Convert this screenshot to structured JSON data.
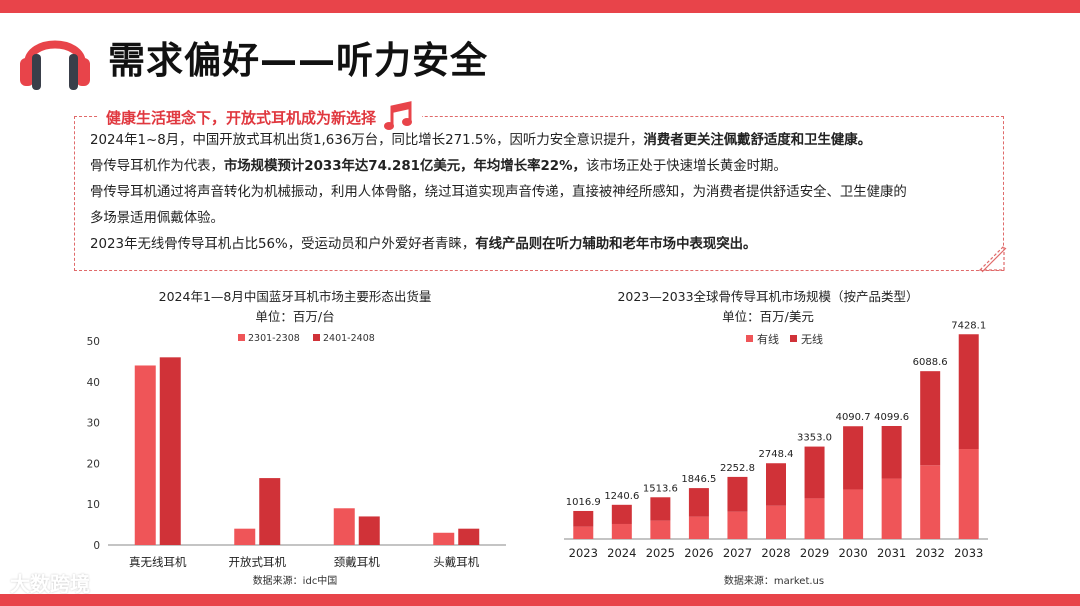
{
  "header": {
    "title": "需求偏好——听力安全"
  },
  "info": {
    "subtitle": "健康生活理念下，开放式耳机成为新选择",
    "p1_a": "2024年1~8月，中国开放式耳机出货1,636万台，同比增长271.5%，因听力安全意识提升，",
    "p1_b": "消费者更关注佩戴舒适度和卫生健康。",
    "p2_a": "骨传导耳机作为代表，",
    "p2_b": "市场规模预计2033年达74.281亿美元，年均增长率22%，",
    "p2_c": "该市场正处于快速增长黄金时期。",
    "p3": "骨传导耳机通过将声音转化为机械振动，利用人体骨骼，绕过耳道实现声音传递，直接被神经所感知，为消费者提供舒适安全、卫生健康的",
    "p4": "多场景适用佩戴体验。",
    "p5_a": "2023年无线骨传导耳机占比56%，受运动员和户外爱好者青睐，",
    "p5_b": "有线产品则在听力辅助和老年市场中表现突出。"
  },
  "watermark": "大数跨境",
  "colors": {
    "accent": "#e8444a",
    "light_red": "#ef5558",
    "dark_red": "#d03238"
  },
  "chart_data": [
    {
      "type": "bar",
      "title": "2024年1—8月中国蓝牙耳机市场主要形态出货量",
      "subtitle": "单位：百万/台",
      "source": "数据来源：idc中国",
      "categories": [
        "真无线耳机",
        "开放式耳机",
        "颈戴耳机",
        "头戴耳机"
      ],
      "series": [
        {
          "name": "2301-2308",
          "values": [
            44,
            4,
            9,
            3
          ]
        },
        {
          "name": "2401-2408",
          "values": [
            46,
            16.4,
            7,
            4
          ]
        }
      ],
      "ylim": [
        0,
        50
      ],
      "yticks": [
        "0",
        "10",
        "20",
        "30",
        "40",
        "50"
      ],
      "legend": "top-center"
    },
    {
      "type": "bar",
      "stacked": true,
      "title": "2023—2033全球骨传导耳机市场规模（按产品类型）",
      "subtitle": "单位：百万/美元",
      "source": "数据来源：market.us",
      "categories": [
        "2023",
        "2024",
        "2025",
        "2026",
        "2027",
        "2028",
        "2029",
        "2030",
        "2031",
        "2032",
        "2033"
      ],
      "series": [
        {
          "name": "有线",
          "values": [
            447,
            545,
            665,
            811,
            990,
            1208,
            1473,
            1797,
            2193,
            2675,
            3264
          ]
        },
        {
          "name": "无线",
          "values": [
            569.9,
            695.6,
            848.6,
            1035.5,
            1262.8,
            1540.4,
            1880,
            2293.7,
            1906.6,
            3413.6,
            4164.1
          ]
        }
      ],
      "totals": [
        "1016.9",
        "1240.6",
        "1513.6",
        "1846.5",
        "2252.8",
        "2748.4",
        "3353.0",
        "4090.7",
        "4099.6",
        "6088.6",
        "7428.1"
      ],
      "ylim": [
        0,
        7800
      ],
      "legend": "top-center"
    }
  ]
}
